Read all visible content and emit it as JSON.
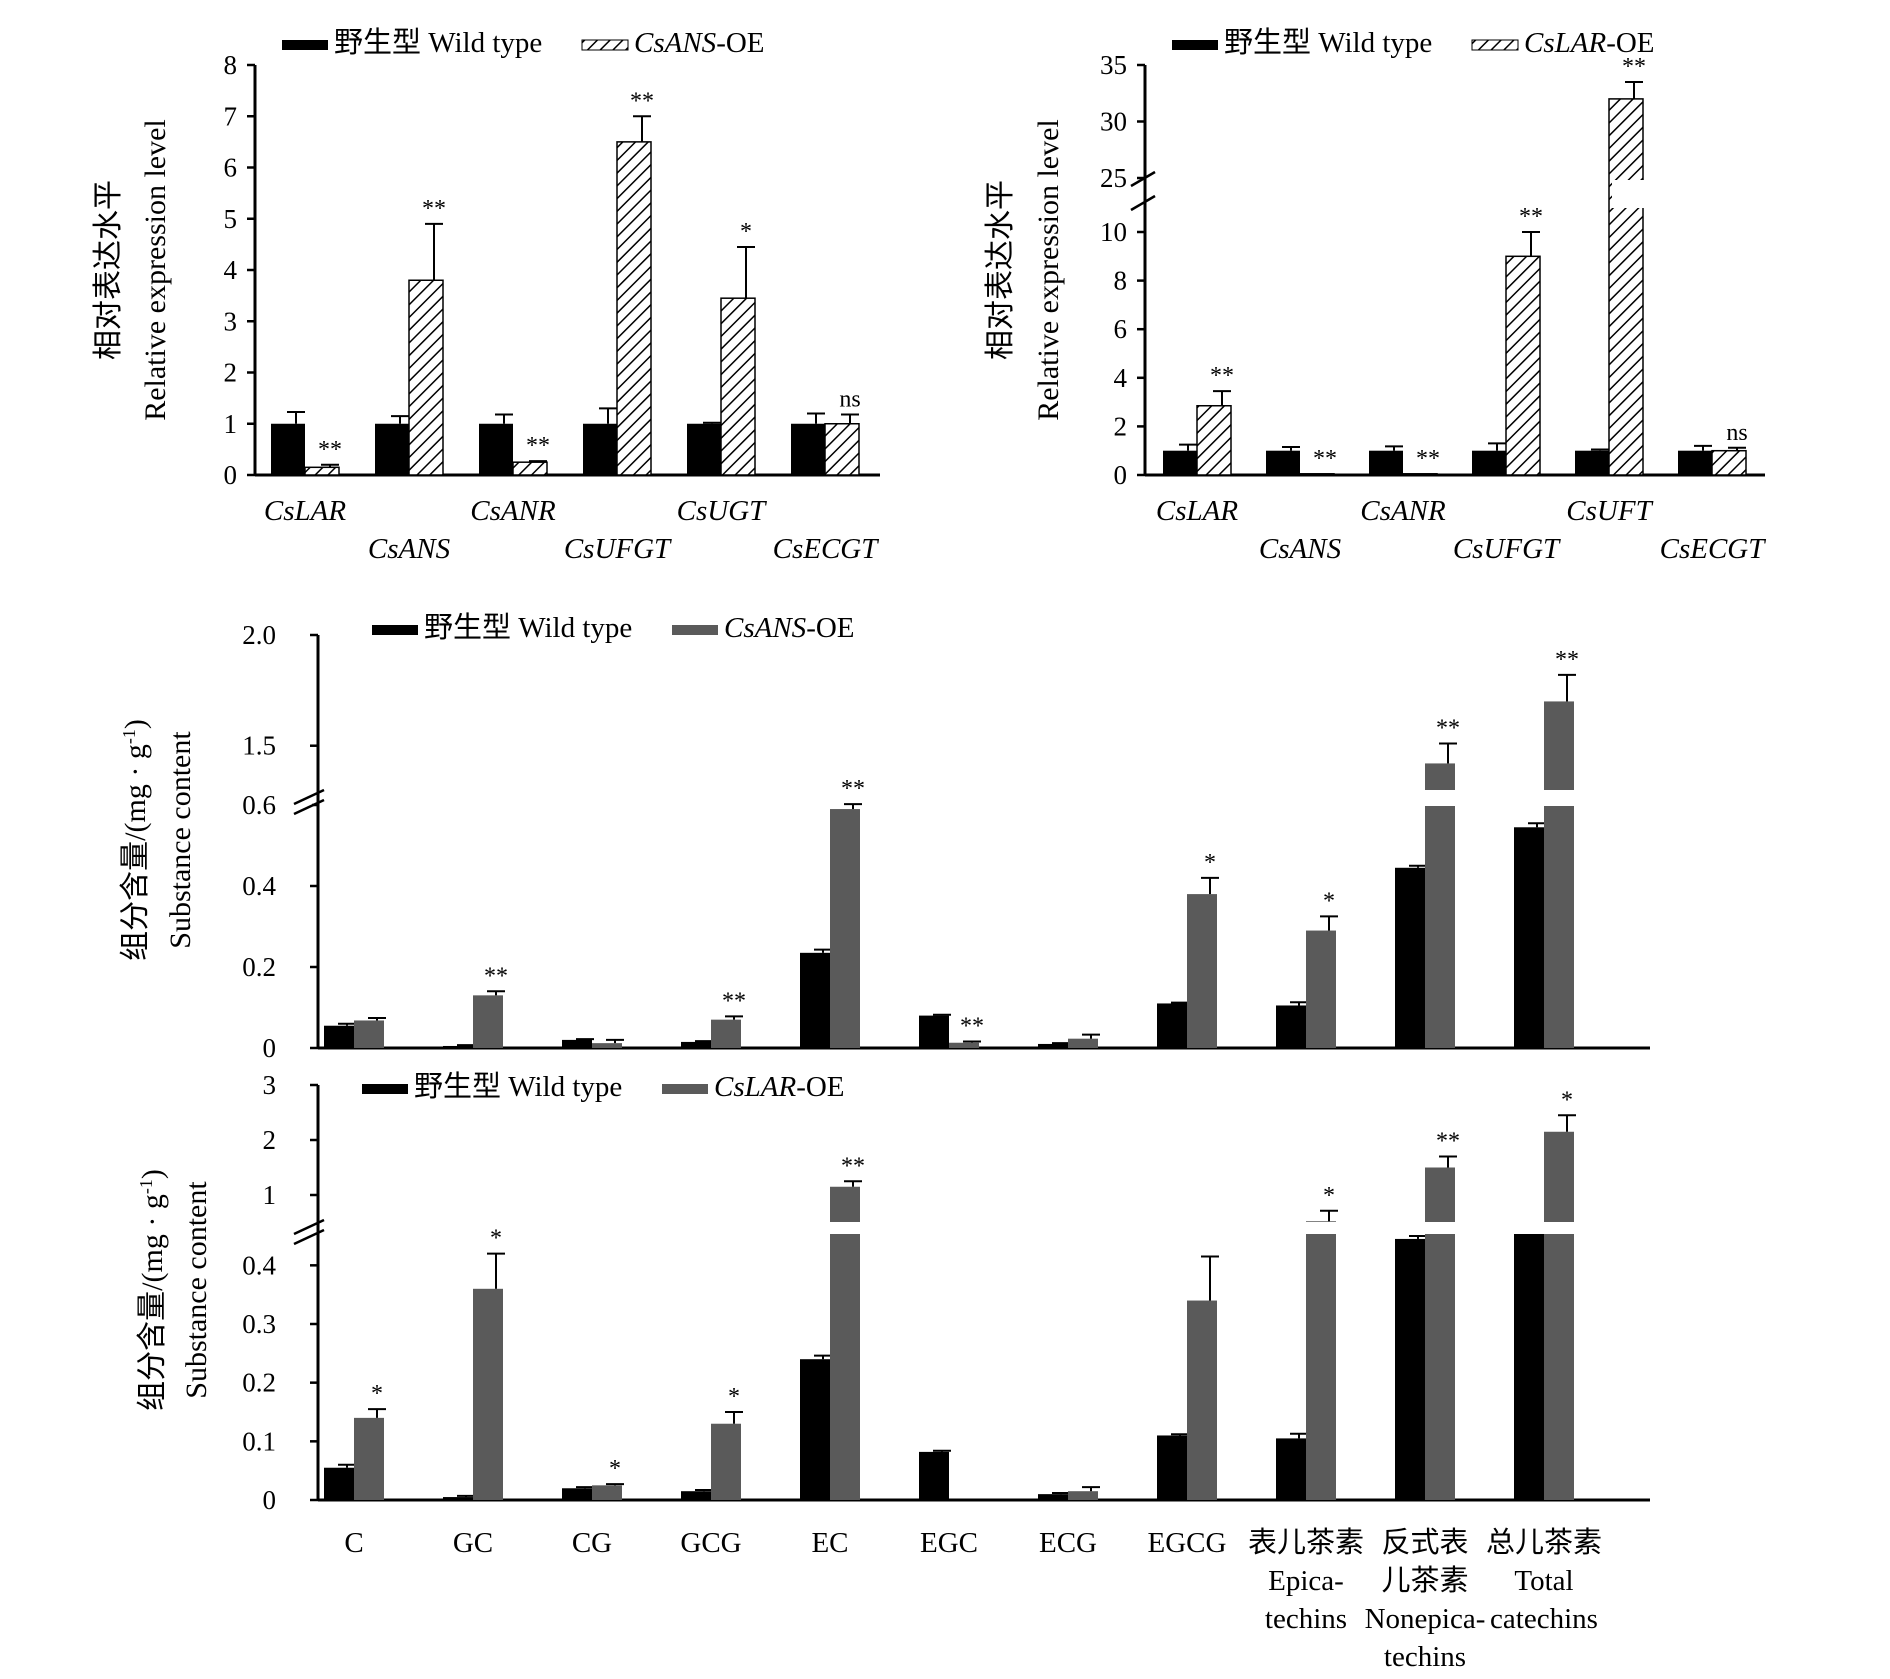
{
  "colors": {
    "wild_type_bar": "#000000",
    "oe_bar_gray": "#5a5a5a",
    "hatch_line": "#000000",
    "background": "#ffffff"
  },
  "chart_data": [
    {
      "id": "chartA",
      "type": "bar",
      "title": "",
      "ylabel_cn": "相对表达水平",
      "ylabel_en": "Relative expression level",
      "ylim": [
        0,
        8
      ],
      "yticks": [
        "0",
        "1",
        "2",
        "3",
        "4",
        "5",
        "6",
        "7",
        "8"
      ],
      "categories": [
        "CsLAR",
        "CsANS",
        "CsANR",
        "CsUFGT",
        "CsUGT",
        "CsECGT"
      ],
      "categories_italic": true,
      "grid": false,
      "legend_position": "top",
      "series": [
        {
          "name_cn": "野生型",
          "name_en": "Wild type",
          "style": "solid",
          "values": [
            1.0,
            1.0,
            1.0,
            1.0,
            1.0,
            1.0
          ],
          "errors": [
            0.23,
            0.15,
            0.18,
            0.3,
            0.02,
            0.2
          ],
          "sig": [
            "",
            "",
            "",
            "",
            "",
            ""
          ]
        },
        {
          "name_italic": "CsANS",
          "name_suffix": "-OE",
          "style": "hatch",
          "values": [
            0.15,
            3.8,
            0.25,
            6.5,
            3.45,
            1.0
          ],
          "errors": [
            0.05,
            1.1,
            0.02,
            0.5,
            1.0,
            0.18
          ],
          "sig": [
            "**",
            "**",
            "**",
            "**",
            "*",
            "ns"
          ]
        }
      ]
    },
    {
      "id": "chartB",
      "type": "bar",
      "title": "",
      "ylabel_cn": "相对表达水平",
      "ylabel_en": "Relative expression level",
      "ylim": [
        0,
        35
      ],
      "axis_break": [
        10,
        25
      ],
      "yticks_lower": [
        "0",
        "2",
        "4",
        "6",
        "8",
        "10"
      ],
      "yticks_upper": [
        "25",
        "30",
        "35"
      ],
      "categories": [
        "CsLAR",
        "CsANS",
        "CsANR",
        "CsUFGT",
        "CsUFT",
        "CsECGT"
      ],
      "categories_italic": true,
      "grid": false,
      "legend_position": "top",
      "series": [
        {
          "name_cn": "野生型",
          "name_en": "Wild type",
          "style": "solid",
          "values": [
            1.0,
            1.0,
            1.0,
            1.0,
            1.0,
            1.0
          ],
          "errors": [
            0.25,
            0.15,
            0.18,
            0.3,
            0.05,
            0.2
          ],
          "sig": [
            "",
            "",
            "",
            "",
            "",
            ""
          ]
        },
        {
          "name_italic": "CsLAR",
          "name_suffix": "-OE",
          "style": "hatch",
          "values": [
            2.85,
            0.05,
            0.05,
            9.0,
            32.0,
            1.0
          ],
          "errors": [
            0.6,
            0.0,
            0.0,
            1.0,
            1.5,
            0.12
          ],
          "sig": [
            "**",
            "**",
            "**",
            "**",
            "**",
            "ns"
          ]
        }
      ]
    },
    {
      "id": "chartC",
      "type": "bar",
      "title": "",
      "ylabel_cn": "组分含量/(mg · g",
      "ylabel_sup": "-1",
      "ylabel_close": ")",
      "ylabel_en": "Substance content",
      "ylim": [
        0,
        2.0
      ],
      "axis_break": [
        0.6,
        1.3
      ],
      "yticks_lower": [
        "0",
        "0.2",
        "0.4",
        "0.6"
      ],
      "yticks_upper": [
        "1.5",
        "2.0"
      ],
      "categories": [
        "C",
        "GC",
        "CG",
        "GCG",
        "EC",
        "EGC",
        "ECG",
        "EGCG",
        "Epicatechins",
        "Nonepicatechins",
        "Total catechins"
      ],
      "grid": false,
      "legend_position": "top",
      "series": [
        {
          "name_cn": "野生型",
          "name_en": "Wild type",
          "style": "solid",
          "values": [
            0.055,
            0.005,
            0.02,
            0.015,
            0.235,
            0.08,
            0.01,
            0.11,
            0.105,
            0.445,
            0.545
          ],
          "errors": [
            0.005,
            0.002,
            0.002,
            0.002,
            0.008,
            0.002,
            0.002,
            0.002,
            0.008,
            0.005,
            0.01
          ],
          "sig": [
            "",
            "",
            "",
            "",
            "",
            "",
            "",
            "",
            "",
            "",
            ""
          ]
        },
        {
          "name_italic": "CsANS",
          "name_suffix": "-OE",
          "style": "gray",
          "values": [
            0.068,
            0.13,
            0.012,
            0.07,
            0.59,
            0.013,
            0.023,
            0.38,
            0.29,
            1.42,
            1.7
          ],
          "errors": [
            0.006,
            0.01,
            0.008,
            0.008,
            0.05,
            0.003,
            0.01,
            0.04,
            0.035,
            0.09,
            0.12
          ],
          "sig": [
            "",
            "**",
            "",
            "**",
            "**",
            "**",
            "",
            "*",
            "*",
            "**",
            "**"
          ]
        }
      ]
    },
    {
      "id": "chartD",
      "type": "bar",
      "title": "",
      "ylabel_cn": "组分含量/(mg · g",
      "ylabel_sup": "-1",
      "ylabel_close": ")",
      "ylabel_en": "Substance content",
      "ylim": [
        0,
        3
      ],
      "axis_break": [
        0.45,
        0.6
      ],
      "yticks_lower": [
        "0",
        "0.1",
        "0.2",
        "0.3",
        "0.4"
      ],
      "yticks_upper": [
        "1",
        "2",
        "3"
      ],
      "categories": [
        "C",
        "GC",
        "CG",
        "GCG",
        "EC",
        "EGC",
        "ECG",
        "EGCG",
        "表儿茶素",
        "反式表儿茶素",
        "总儿茶素"
      ],
      "grid": false,
      "legend_position": "top",
      "series": [
        {
          "name_cn": "野生型",
          "name_en": "Wild type",
          "style": "solid",
          "values": [
            0.055,
            0.005,
            0.02,
            0.015,
            0.24,
            0.082,
            0.01,
            0.11,
            0.105,
            0.445,
            0.55
          ],
          "errors": [
            0.005,
            0.002,
            0.002,
            0.002,
            0.006,
            0.002,
            0.002,
            0.002,
            0.008,
            0.005,
            0.01
          ],
          "sig": [
            "",
            "",
            "",
            "",
            "",
            "",
            "",
            "",
            "",
            "",
            ""
          ]
        },
        {
          "name_italic": "CsLAR",
          "name_suffix": "-OE",
          "style": "gray",
          "values": [
            0.14,
            0.36,
            0.025,
            0.13,
            1.15,
            0.0,
            0.015,
            0.34,
            0.7,
            1.5,
            2.15
          ],
          "errors": [
            0.015,
            0.06,
            0.002,
            0.02,
            0.1,
            0.0,
            0.007,
            0.075,
            0.12,
            0.2,
            0.3
          ],
          "sig": [
            "*",
            "*",
            "*",
            "*",
            "**",
            "",
            "",
            "",
            "*",
            "**",
            "*"
          ]
        }
      ]
    }
  ],
  "x_axis_labels": [
    {
      "lines": [
        "C"
      ]
    },
    {
      "lines": [
        "GC"
      ]
    },
    {
      "lines": [
        "CG"
      ]
    },
    {
      "lines": [
        "GCG"
      ]
    },
    {
      "lines": [
        "EC"
      ]
    },
    {
      "lines": [
        "EGC"
      ]
    },
    {
      "lines": [
        "ECG"
      ]
    },
    {
      "lines": [
        "EGCG"
      ]
    },
    {
      "lines": [
        "表儿茶素",
        "Epica-",
        "techins"
      ]
    },
    {
      "lines": [
        "反式表",
        "儿茶素",
        "Nonepica-",
        "techins"
      ]
    },
    {
      "lines": [
        "总儿茶素",
        "Total",
        "catechins"
      ]
    }
  ]
}
